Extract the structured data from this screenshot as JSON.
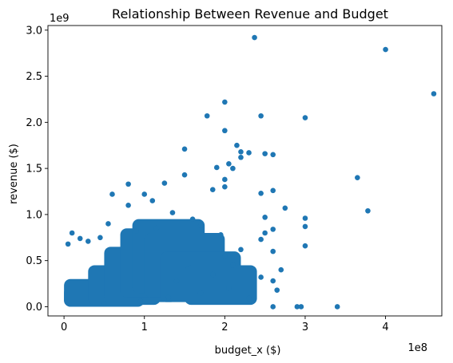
{
  "chart_data": {
    "type": "scatter",
    "title": "Relationship Between Revenue and Budget",
    "xlabel": "budget_x ($)",
    "ylabel": "revenue ($)",
    "x_offset_label": "1e8",
    "y_offset_label": "1e9",
    "xlim": [
      -0.2,
      4.7
    ],
    "ylim": [
      -0.1,
      3.05
    ],
    "x_ticks": [
      0,
      1,
      2,
      3,
      4
    ],
    "x_tick_labels": [
      "0",
      "1",
      "2",
      "3",
      "4"
    ],
    "y_ticks": [
      0.0,
      0.5,
      1.0,
      1.5,
      2.0,
      2.5,
      3.0
    ],
    "y_tick_labels": [
      "0.0",
      "0.5",
      "1.0",
      "1.5",
      "2.0",
      "2.5",
      "3.0"
    ],
    "grid": false,
    "marker_color": "#1f77b4",
    "units": {
      "x": "1e8 $",
      "y": "1e9 $"
    },
    "series": [
      {
        "points": [
          [
            2.37,
            2.92
          ],
          [
            4.0,
            2.79
          ],
          [
            4.6,
            2.31
          ],
          [
            2.0,
            2.22
          ],
          [
            1.78,
            2.07
          ],
          [
            2.45,
            2.07
          ],
          [
            3.0,
            2.05
          ],
          [
            2.0,
            1.91
          ],
          [
            1.5,
            1.71
          ],
          [
            2.15,
            1.75
          ],
          [
            2.2,
            1.68
          ],
          [
            2.3,
            1.67
          ],
          [
            2.2,
            1.62
          ],
          [
            2.5,
            1.66
          ],
          [
            2.6,
            1.65
          ],
          [
            2.05,
            1.55
          ],
          [
            1.9,
            1.51
          ],
          [
            2.1,
            1.5
          ],
          [
            1.5,
            1.43
          ],
          [
            3.65,
            1.4
          ],
          [
            2.0,
            1.38
          ],
          [
            0.8,
            1.33
          ],
          [
            1.25,
            1.34
          ],
          [
            1.85,
            1.27
          ],
          [
            2.0,
            1.3
          ],
          [
            2.6,
            1.26
          ],
          [
            2.45,
            1.23
          ],
          [
            1.0,
            1.22
          ],
          [
            0.6,
            1.22
          ],
          [
            3.78,
            1.04
          ],
          [
            2.75,
            1.07
          ],
          [
            3.0,
            0.96
          ],
          [
            3.0,
            0.87
          ],
          [
            2.5,
            0.97
          ],
          [
            2.6,
            0.84
          ],
          [
            2.5,
            0.8
          ],
          [
            2.45,
            0.73
          ],
          [
            0.1,
            0.8
          ],
          [
            0.2,
            0.74
          ],
          [
            0.3,
            0.71
          ],
          [
            0.05,
            0.68
          ],
          [
            3.0,
            0.66
          ],
          [
            2.6,
            0.6
          ],
          [
            2.7,
            0.4
          ],
          [
            2.6,
            0.28
          ],
          [
            2.45,
            0.32
          ],
          [
            2.65,
            0.18
          ],
          [
            2.6,
            0.0
          ],
          [
            2.9,
            0.0
          ],
          [
            2.95,
            0.0
          ],
          [
            3.4,
            0.0
          ],
          [
            2.3,
            0.09
          ],
          [
            0.8,
            1.1
          ],
          [
            1.1,
            1.15
          ],
          [
            1.35,
            1.02
          ],
          [
            1.6,
            0.95
          ],
          [
            1.15,
            0.85
          ],
          [
            0.9,
            0.82
          ],
          [
            0.55,
            0.9
          ],
          [
            0.45,
            0.75
          ],
          [
            1.7,
            0.88
          ],
          [
            1.95,
            0.78
          ],
          [
            2.2,
            0.62
          ],
          [
            2.0,
            0.55
          ],
          [
            2.1,
            0.45
          ],
          [
            1.85,
            0.35
          ],
          [
            1.4,
            0.28
          ],
          [
            2.05,
            0.2
          ],
          [
            1.7,
            0.15
          ],
          [
            1.3,
            0.1
          ],
          [
            0.95,
            0.06
          ],
          [
            0.5,
            0.03
          ]
        ]
      }
    ]
  }
}
